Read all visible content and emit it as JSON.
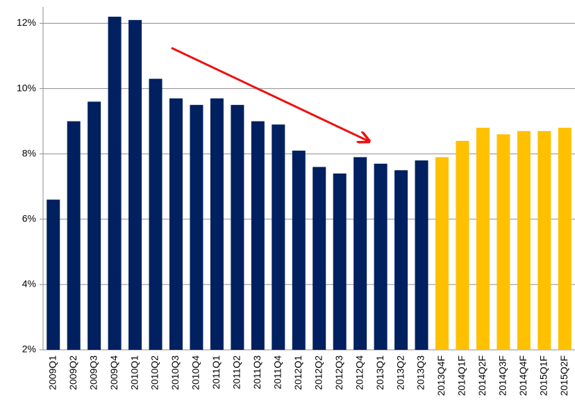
{
  "chart_data": {
    "type": "bar",
    "categories": [
      "2009Q1",
      "2009Q2",
      "2009Q3",
      "2009Q4",
      "2010Q1",
      "2010Q2",
      "2010Q3",
      "2010Q4",
      "2011Q1",
      "2011Q2",
      "2011Q3",
      "2011Q4",
      "2012Q1",
      "2012Q2",
      "2012Q3",
      "2012Q4",
      "2013Q1",
      "2013Q2",
      "2013Q3",
      "2013Q4F",
      "2014Q1F",
      "2014Q2F",
      "2014Q3F",
      "2014Q4F",
      "2015Q1F",
      "2015Q2F"
    ],
    "values": [
      6.6,
      9.0,
      9.6,
      12.2,
      12.1,
      10.3,
      9.7,
      9.5,
      9.7,
      9.5,
      9.0,
      8.9,
      8.1,
      7.6,
      7.4,
      7.9,
      7.7,
      7.5,
      7.8,
      7.9,
      8.4,
      8.8,
      8.6,
      8.7,
      8.7,
      8.8
    ],
    "colors": [
      "#002060",
      "#002060",
      "#002060",
      "#002060",
      "#002060",
      "#002060",
      "#002060",
      "#002060",
      "#002060",
      "#002060",
      "#002060",
      "#002060",
      "#002060",
      "#002060",
      "#002060",
      "#002060",
      "#002060",
      "#002060",
      "#002060",
      "#ffc000",
      "#ffc000",
      "#ffc000",
      "#ffc000",
      "#ffc000",
      "#ffc000",
      "#ffc000"
    ],
    "ylim": [
      2,
      12.5
    ],
    "yticks": [
      {
        "value": 2,
        "label": "2%"
      },
      {
        "value": 4,
        "label": "4%"
      },
      {
        "value": 6,
        "label": "6%"
      },
      {
        "value": 8,
        "label": "8%"
      },
      {
        "value": 10,
        "label": "10%"
      },
      {
        "value": 12,
        "label": "12%"
      }
    ],
    "grid": true
  }
}
